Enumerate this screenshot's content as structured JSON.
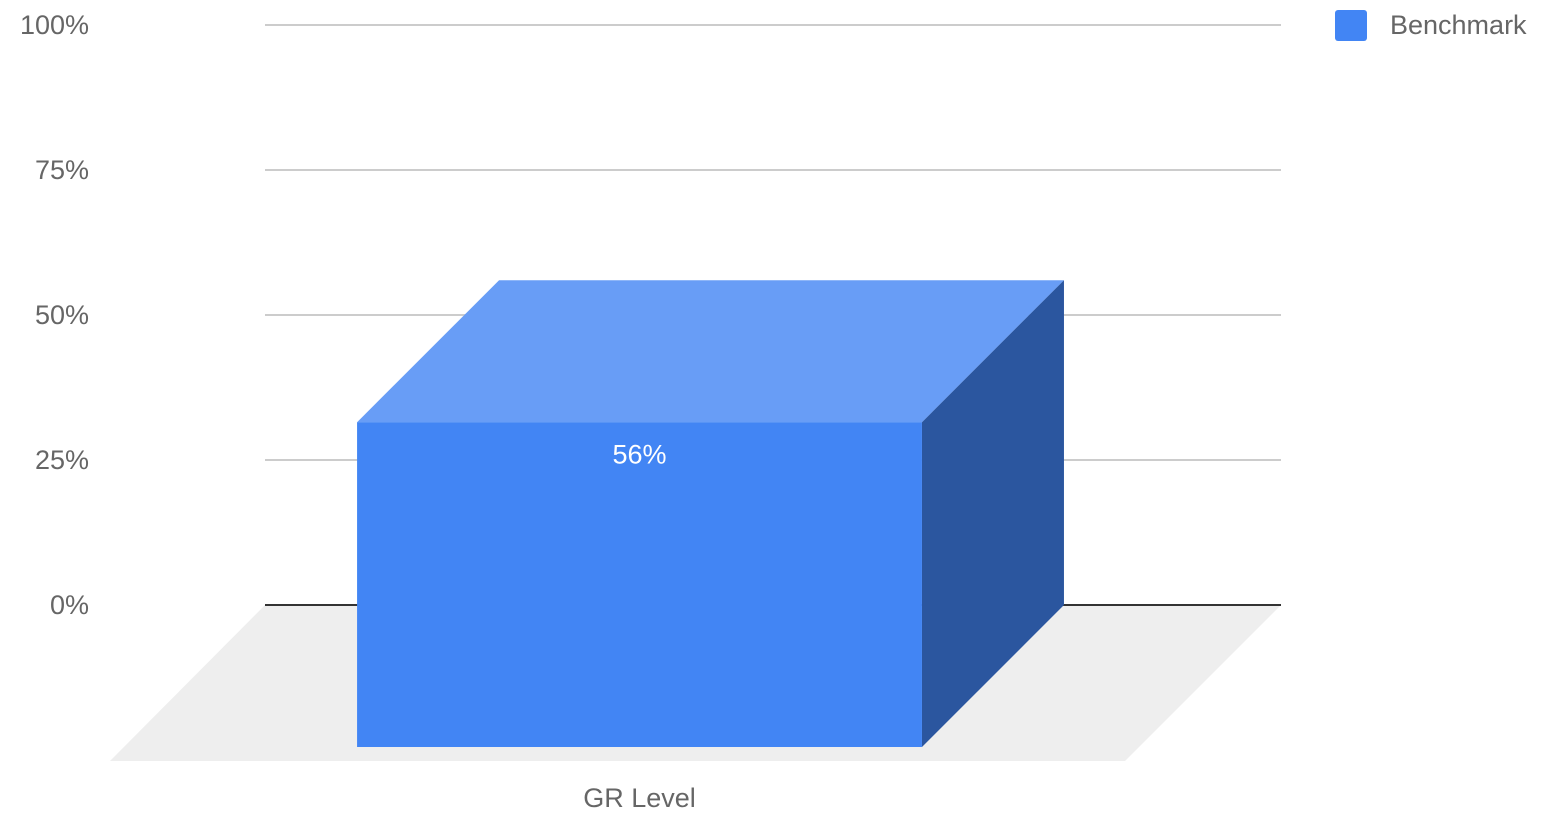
{
  "chart_data": {
    "type": "bar3d",
    "categories": [
      "GR Level"
    ],
    "series": [
      {
        "name": "Benchmark",
        "color": "#4285f4",
        "values": [
          56
        ],
        "value_labels": [
          "56%"
        ]
      }
    ],
    "ylim": [
      0,
      100
    ],
    "yticks": [
      {
        "value": 0,
        "label": "0%"
      },
      {
        "value": 25,
        "label": "25%"
      },
      {
        "value": 50,
        "label": "50%"
      },
      {
        "value": 75,
        "label": "75%"
      },
      {
        "value": 100,
        "label": "100%"
      }
    ],
    "grid": true,
    "legend": "top-right"
  }
}
